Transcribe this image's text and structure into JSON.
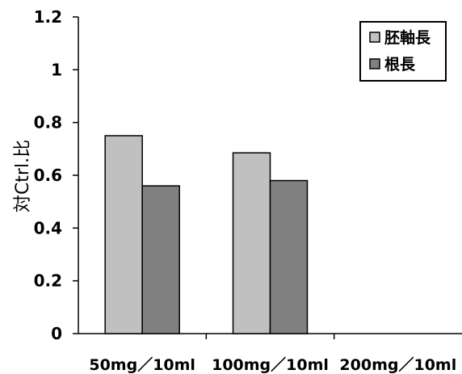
{
  "chart_data": {
    "type": "bar",
    "categories": [
      "50mg／10ml",
      "100mg／10ml",
      "200mg／10ml"
    ],
    "series": [
      {
        "name": "胚軸長",
        "color": "#c0c0c0",
        "values": [
          0.75,
          0.685,
          null
        ]
      },
      {
        "name": "根長",
        "color": "#808080",
        "values": [
          0.56,
          0.58,
          null
        ]
      }
    ],
    "ylabel": "対Ctrl.比",
    "xlabel": "",
    "ylim": [
      0,
      1.2
    ],
    "yticks": [
      "0",
      "0.2",
      "0.4",
      "0.6",
      "0.8",
      "1",
      "1.2"
    ],
    "grid": false,
    "legend_position": "top-right"
  }
}
